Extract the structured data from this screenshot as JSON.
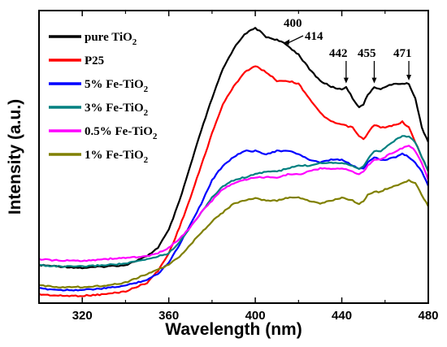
{
  "chart_data": {
    "type": "line",
    "xlabel": "Wavelength (nm)",
    "ylabel": "Intensity (a.u.)",
    "xlim": [
      300,
      480
    ],
    "ylim": [
      0,
      100
    ],
    "x_ticks": [
      320,
      360,
      400,
      440,
      480
    ],
    "y_ticks_labeled": false,
    "legend_position": "top-left",
    "grid": false,
    "series": [
      {
        "name": "pure TiO2",
        "legend": [
          "pure TiO",
          "2",
          ""
        ],
        "color": "#000000",
        "x": [
          300,
          310,
          320,
          330,
          340,
          350,
          355,
          360,
          365,
          370,
          375,
          380,
          385,
          390,
          395,
          400,
          402,
          405,
          410,
          414,
          420,
          425,
          430,
          435,
          440,
          442,
          445,
          448,
          450,
          452,
          455,
          458,
          460,
          465,
          468,
          471,
          474,
          477,
          480
        ],
        "y": [
          13,
          12.5,
          12,
          12.5,
          13,
          16,
          19,
          25,
          35,
          47,
          59,
          70,
          80,
          87,
          92,
          94,
          93,
          91,
          90,
          88.5,
          85,
          80,
          76,
          74,
          73,
          74,
          70,
          67,
          68,
          71,
          74,
          73,
          74,
          75,
          75,
          75,
          70,
          60,
          55
        ]
      },
      {
        "name": "P25",
        "legend": [
          "P25",
          "",
          ""
        ],
        "color": "#ff0000",
        "x": [
          300,
          310,
          320,
          330,
          340,
          350,
          355,
          360,
          365,
          370,
          375,
          380,
          385,
          390,
          395,
          400,
          405,
          410,
          415,
          420,
          425,
          430,
          435,
          440,
          445,
          448,
          450,
          452,
          455,
          458,
          460,
          465,
          468,
          471,
          474,
          477,
          480
        ],
        "y": [
          3,
          2.5,
          2.5,
          3,
          4,
          7,
          11,
          17,
          26,
          36,
          47,
          58,
          68,
          74,
          79,
          81,
          79,
          76,
          76,
          75,
          70,
          65,
          62,
          61,
          60,
          57,
          56,
          58,
          61,
          60,
          60,
          61,
          62,
          60,
          55,
          50,
          45
        ]
      },
      {
        "name": "5% Fe-TiO2",
        "legend": [
          "5% Fe-TiO",
          "2",
          ""
        ],
        "color": "#0000ff",
        "x": [
          300,
          310,
          320,
          330,
          340,
          350,
          355,
          360,
          365,
          370,
          375,
          380,
          385,
          390,
          395,
          400,
          405,
          410,
          415,
          420,
          425,
          430,
          435,
          440,
          445,
          448,
          450,
          452,
          455,
          458,
          460,
          465,
          468,
          471,
          474,
          477,
          480
        ],
        "y": [
          5,
          4.5,
          4.5,
          5,
          6,
          8,
          10,
          14,
          20,
          27,
          34,
          42,
          47,
          50,
          52,
          52,
          51,
          52,
          52,
          51,
          49,
          48,
          49,
          49,
          47,
          46,
          46,
          48,
          50,
          49,
          49,
          50,
          51,
          50,
          48,
          45,
          40
        ]
      },
      {
        "name": "3% Fe-TiO2",
        "legend": [
          "3% Fe-TiO",
          "2",
          ""
        ],
        "color": "#008080",
        "x": [
          300,
          310,
          320,
          330,
          340,
          350,
          355,
          360,
          365,
          370,
          375,
          380,
          385,
          390,
          395,
          400,
          405,
          410,
          415,
          420,
          425,
          430,
          435,
          440,
          445,
          448,
          450,
          452,
          455,
          458,
          460,
          465,
          468,
          471,
          474,
          477,
          480
        ],
        "y": [
          13,
          12.5,
          12.5,
          13,
          13.5,
          15,
          16,
          17,
          21,
          26,
          31,
          36,
          40,
          42,
          43,
          44,
          45,
          45,
          46,
          47,
          47,
          48,
          48,
          48,
          47,
          46,
          47,
          49,
          52,
          52,
          53,
          56,
          57,
          57,
          55,
          50,
          45
        ]
      },
      {
        "name": "0.5% Fe-TiO2",
        "legend": [
          "0.5% Fe-TiO",
          "2",
          ""
        ],
        "color": "#ff00ff",
        "x": [
          300,
          310,
          320,
          330,
          340,
          350,
          355,
          360,
          365,
          370,
          375,
          380,
          385,
          390,
          395,
          400,
          405,
          410,
          415,
          420,
          425,
          430,
          435,
          440,
          445,
          448,
          450,
          452,
          455,
          458,
          460,
          465,
          468,
          471,
          474,
          477,
          480
        ],
        "y": [
          15,
          14.5,
          14.5,
          15,
          15.5,
          16,
          17,
          19,
          22,
          26,
          31,
          35,
          39,
          41,
          42,
          43,
          43,
          43,
          44,
          44,
          45,
          46,
          46,
          46,
          45,
          44,
          45,
          47,
          49,
          49,
          50,
          52,
          53,
          54,
          52,
          48,
          42
        ]
      },
      {
        "name": "1% Fe-TiO2",
        "legend": [
          "1% Fe-TiO",
          "2",
          ""
        ],
        "color": "#808000",
        "x": [
          300,
          310,
          320,
          330,
          340,
          350,
          355,
          360,
          365,
          370,
          375,
          380,
          385,
          390,
          395,
          400,
          405,
          410,
          415,
          420,
          425,
          430,
          435,
          440,
          445,
          448,
          450,
          452,
          455,
          458,
          460,
          465,
          468,
          471,
          474,
          477,
          480
        ],
        "y": [
          6,
          5.5,
          5.5,
          6,
          7,
          10,
          11.5,
          13,
          16,
          20,
          24,
          28,
          31,
          34,
          35,
          36,
          35,
          35,
          36,
          36,
          35,
          34,
          35,
          36,
          35,
          34,
          35,
          37,
          38,
          38,
          39,
          40,
          41,
          42,
          41,
          37,
          33
        ]
      }
    ],
    "annotations": [
      {
        "text": "400",
        "x": 400,
        "y": 94,
        "arrow": "none"
      },
      {
        "text": "414",
        "x": 414,
        "y": 88.5,
        "arrow": "left"
      },
      {
        "text": "442",
        "x": 442,
        "y": 74,
        "arrow": "down"
      },
      {
        "text": "455",
        "x": 455,
        "y": 74,
        "arrow": "down"
      },
      {
        "text": "471",
        "x": 471,
        "y": 75,
        "arrow": "down"
      }
    ]
  }
}
